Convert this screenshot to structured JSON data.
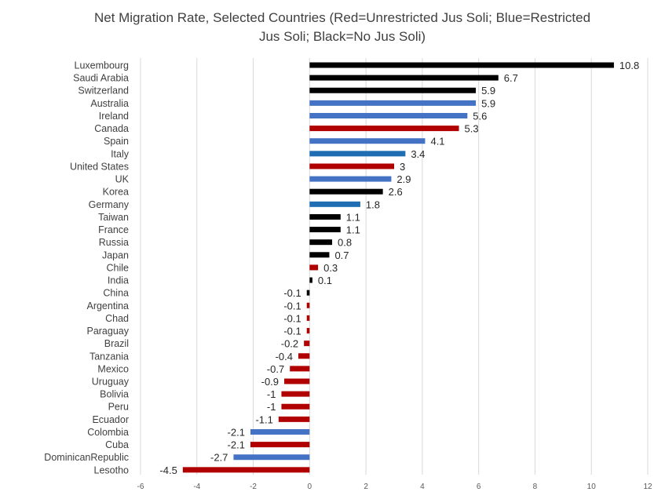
{
  "chart_data": {
    "type": "bar",
    "orientation": "horizontal",
    "title_lines": [
      "Net Migration Rate, Selected Countries (Red=Unrestricted Jus Soli; Blue=Restricted",
      "Jus Soli; Black=No Jus Soli)"
    ],
    "xlabel": "",
    "ylabel": "",
    "xlim": [
      -6,
      12
    ],
    "xticks": [
      -6,
      -4,
      -2,
      0,
      2,
      4,
      6,
      8,
      10,
      12
    ],
    "xtick_labels": [
      "-6",
      "-4",
      "-2",
      "0",
      "2",
      "4",
      "6",
      "8",
      "10",
      "12"
    ],
    "grid": "vertical",
    "legend": "none",
    "colors": {
      "red": "#b00000",
      "blue": "#4472c4",
      "blue_dark": "#1f6eb4",
      "black": "#000000",
      "grid": "#d9d9d9"
    },
    "bars": [
      {
        "category": "Luxembourg",
        "value": 10.8,
        "label": "10.8",
        "color": "black"
      },
      {
        "category": "Saudi Arabia",
        "value": 6.7,
        "label": "6.7",
        "color": "black"
      },
      {
        "category": "Switzerland",
        "value": 5.9,
        "label": "5.9",
        "color": "black"
      },
      {
        "category": "Australia",
        "value": 5.9,
        "label": "5.9",
        "color": "blue"
      },
      {
        "category": "Ireland",
        "value": 5.6,
        "label": "5.6",
        "color": "blue"
      },
      {
        "category": "Canada",
        "value": 5.3,
        "label": "5.3",
        "color": "red"
      },
      {
        "category": "Spain",
        "value": 4.1,
        "label": "4.1",
        "color": "blue"
      },
      {
        "category": "Italy",
        "value": 3.4,
        "label": "3.4",
        "color": "blue_dark"
      },
      {
        "category": "United States",
        "value": 3,
        "label": "3",
        "color": "red"
      },
      {
        "category": "UK",
        "value": 2.9,
        "label": "2.9",
        "color": "blue"
      },
      {
        "category": "Korea",
        "value": 2.6,
        "label": "2.6",
        "color": "black"
      },
      {
        "category": "Germany",
        "value": 1.8,
        "label": "1.8",
        "color": "blue_dark"
      },
      {
        "category": "Taiwan",
        "value": 1.1,
        "label": "1.1",
        "color": "black"
      },
      {
        "category": "France",
        "value": 1.1,
        "label": "1.1",
        "color": "black"
      },
      {
        "category": "Russia",
        "value": 0.8,
        "label": "0.8",
        "color": "black"
      },
      {
        "category": "Japan",
        "value": 0.7,
        "label": "0.7",
        "color": "black"
      },
      {
        "category": "Chile",
        "value": 0.3,
        "label": "0.3",
        "color": "red"
      },
      {
        "category": "India",
        "value": 0.1,
        "label": "0.1",
        "color": "black"
      },
      {
        "category": "China",
        "value": -0.1,
        "label": "-0.1",
        "color": "black"
      },
      {
        "category": "Argentina",
        "value": -0.1,
        "label": "-0.1",
        "color": "red"
      },
      {
        "category": "Chad",
        "value": -0.1,
        "label": "-0.1",
        "color": "red"
      },
      {
        "category": "Paraguay",
        "value": -0.1,
        "label": "-0.1",
        "color": "red"
      },
      {
        "category": "Brazil",
        "value": -0.2,
        "label": "-0.2",
        "color": "red"
      },
      {
        "category": "Tanzania",
        "value": -0.4,
        "label": "-0.4",
        "color": "red"
      },
      {
        "category": "Mexico",
        "value": -0.7,
        "label": "-0.7",
        "color": "red"
      },
      {
        "category": "Uruguay",
        "value": -0.9,
        "label": "-0.9",
        "color": "red"
      },
      {
        "category": "Bolivia",
        "value": -1,
        "label": "-1",
        "color": "red"
      },
      {
        "category": "Peru",
        "value": -1,
        "label": "-1",
        "color": "red"
      },
      {
        "category": "Ecuador",
        "value": -1.1,
        "label": "-1.1",
        "color": "red"
      },
      {
        "category": "Colombia",
        "value": -2.1,
        "label": "-2.1",
        "color": "blue"
      },
      {
        "category": "Cuba",
        "value": -2.1,
        "label": "-2.1",
        "color": "red"
      },
      {
        "category": "DominicanRepublic",
        "value": -2.7,
        "label": "-2.7",
        "color": "blue"
      },
      {
        "category": "Lesotho",
        "value": -4.5,
        "label": "-4.5",
        "color": "red"
      }
    ]
  }
}
